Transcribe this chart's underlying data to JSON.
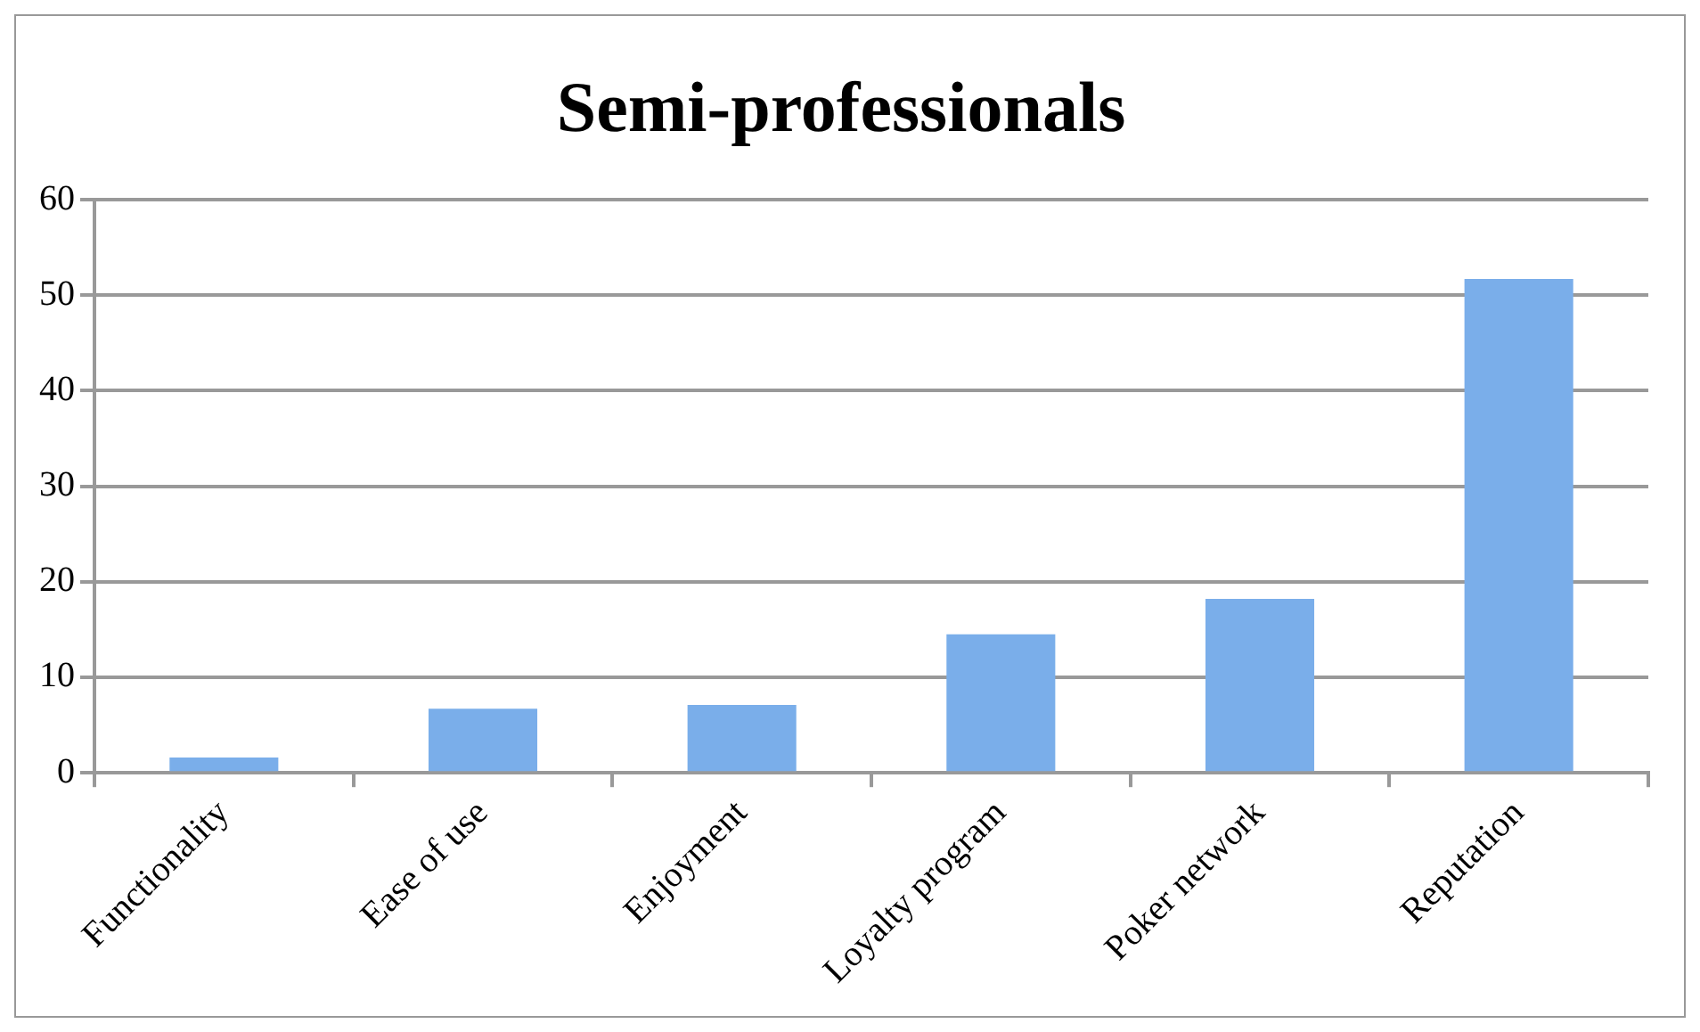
{
  "chart_data": {
    "type": "bar",
    "title": "Semi-professionals",
    "categories": [
      "Functionality",
      "Ease of use",
      "Enjoyment",
      "Loyalty program",
      "Poker network",
      "Reputation"
    ],
    "values": [
      1.6,
      6.7,
      7.1,
      14.5,
      18.2,
      51.7
    ],
    "color": "#7aaeea",
    "ylim": [
      0,
      60
    ],
    "yticks": [
      0,
      10,
      20,
      30,
      40,
      50,
      60
    ],
    "grid": "y",
    "legend": false
  }
}
